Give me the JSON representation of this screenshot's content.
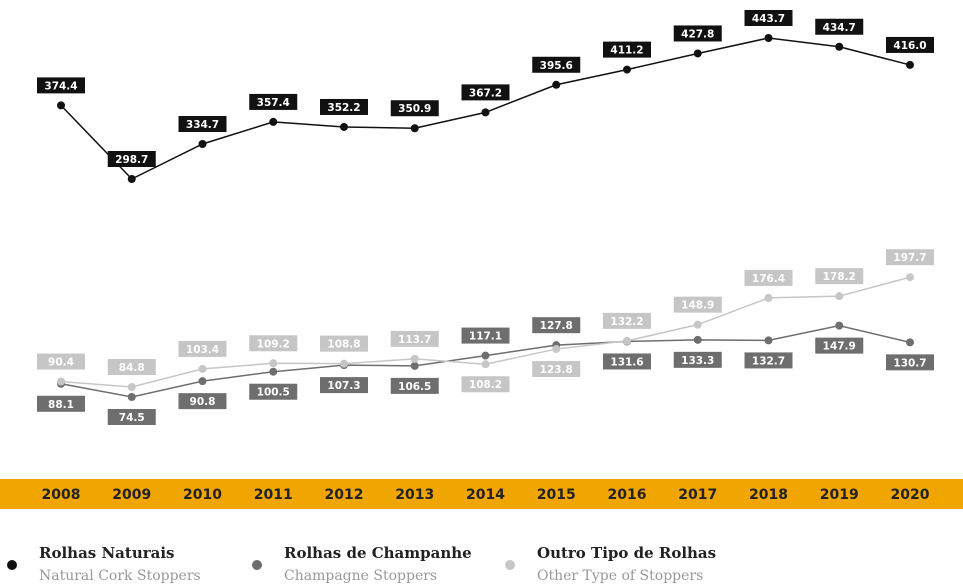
{
  "chart_data": {
    "type": "line",
    "categories": [
      "2008",
      "2009",
      "2010",
      "2011",
      "2012",
      "2013",
      "2014",
      "2015",
      "2016",
      "2017",
      "2018",
      "2019",
      "2020"
    ],
    "series": [
      {
        "name": "Rolhas Naturais",
        "name_en": "Natural Cork Stoppers",
        "color": "#111111",
        "values": [
          374.4,
          298.7,
          334.7,
          357.4,
          352.2,
          350.9,
          367.2,
          395.6,
          411.2,
          427.8,
          443.7,
          434.7,
          416.0
        ],
        "value_labels": [
          "374.4",
          "298.7",
          "334.7",
          "357.4",
          "352.2",
          "350.9",
          "367.2",
          "395.6",
          "411.2",
          "427.8",
          "443.7",
          "434.7",
          "416.0"
        ]
      },
      {
        "name": "Rolhas de Champanhe",
        "name_en": "Champagne Stoppers",
        "color": "#6e6e6e",
        "values": [
          88.1,
          74.5,
          90.8,
          100.5,
          107.3,
          106.5,
          117.1,
          127.8,
          131.6,
          133.3,
          132.7,
          147.9,
          130.7
        ]
      },
      {
        "name": "Outro Tipo de Rolhas",
        "name_en": "Other Type of Stoppers",
        "color": "#c6c6c6",
        "values": [
          90.4,
          84.8,
          103.4,
          109.2,
          108.8,
          113.7,
          108.2,
          123.8,
          132.2,
          148.9,
          176.4,
          178.2,
          197.7
        ]
      }
    ],
    "band_color": "#f0a500"
  }
}
